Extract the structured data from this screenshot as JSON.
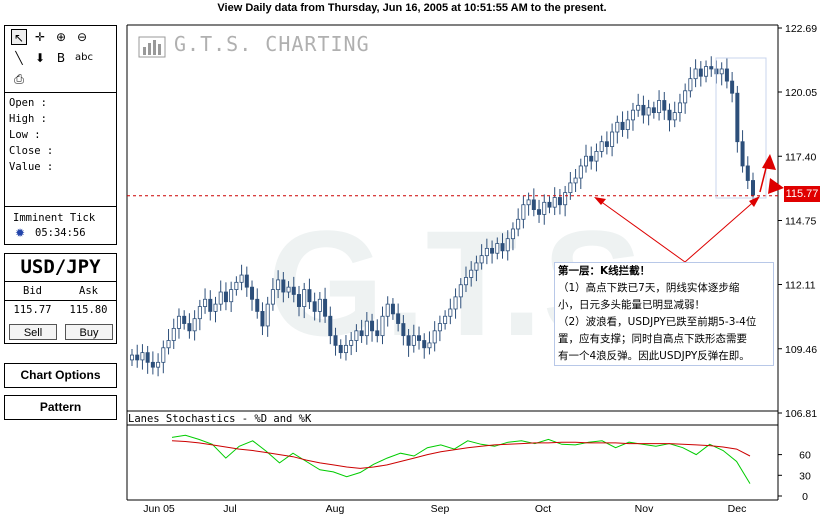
{
  "header": {
    "title": "View Daily  data from Thursday, Jun 16, 2005 at 10:51:55 AM to the present."
  },
  "tools": [
    {
      "name": "pointer-tool",
      "glyph": "↖",
      "active": true
    },
    {
      "name": "crosshair-tool",
      "glyph": "✛",
      "active": false
    },
    {
      "name": "zoom-in-tool",
      "glyph": "⊕",
      "active": false
    },
    {
      "name": "zoom-out-tool",
      "glyph": "⊖",
      "active": false
    },
    {
      "name": "line-tool",
      "glyph": "╲",
      "active": false
    },
    {
      "name": "arrow-down-tool",
      "glyph": "⬇",
      "active": false
    },
    {
      "name": "text-box-tool",
      "glyph": "B",
      "active": false
    },
    {
      "name": "text-tool",
      "glyph": "abc",
      "active": false
    },
    {
      "name": "print-tool",
      "glyph": "⎙",
      "active": false
    }
  ],
  "ohlc_labels": {
    "open": "Open :",
    "high": "High :",
    "low": "Low :",
    "close": "Close :",
    "value": "Value :"
  },
  "tick": {
    "label": "Imminent Tick",
    "time": "05:34:56"
  },
  "quote": {
    "symbol": "USD/JPY",
    "bid_label": "Bid",
    "ask_label": "Ask",
    "bid": "115.77",
    "ask": "115.80",
    "sell": "Sell",
    "buy": "Buy"
  },
  "buttons": {
    "chart_options": "Chart Options",
    "pattern": "Pattern"
  },
  "logo": {
    "text": "G.T.S. CHARTING",
    "watermark": "G.T.S"
  },
  "stochastics": {
    "title": "Lanes Stochastics - %D and %K",
    "y_ticks": [
      60,
      30,
      0
    ]
  },
  "annotation": {
    "lines": [
      "第一层：K线拦截！",
      "（1）高点下跌已7天，阴线实体逐步缩",
      "小，日元多头能量已明显减弱！",
      "（2）波浪看，USDJPY已跌至前期5-3-4位",
      "置，应有支撑；同时自高点下跌形态需要",
      "有一个4浪反弹。因此USDJPY反弹在即。"
    ]
  },
  "current_price": "115.77",
  "colors": {
    "candle": "#2d4f7a",
    "stoch_k": "#00cc00",
    "stoch_d": "#cc0000",
    "ref_line": "#cc0000",
    "arrow": "#dd0000",
    "badge": "#e00000"
  },
  "chart_data": {
    "type": "candlestick",
    "title": "",
    "y_axis_ticks": [
      "122.69",
      "120.05",
      "117.40",
      "114.75",
      "112.11",
      "109.46",
      "106.81"
    ],
    "ylim": [
      106.81,
      122.69
    ],
    "x_labels": [
      "Jun 05",
      "Jul",
      "Aug",
      "Sep",
      "Oct",
      "Nov",
      "Dec"
    ],
    "reference_line": 115.77,
    "close_series": [
      109.2,
      109.0,
      109.3,
      108.9,
      108.7,
      108.9,
      109.5,
      109.8,
      110.3,
      110.8,
      110.5,
      110.2,
      110.7,
      111.2,
      111.5,
      111.0,
      111.3,
      111.8,
      111.4,
      111.9,
      112.2,
      112.5,
      112.0,
      111.5,
      111.0,
      110.4,
      111.3,
      111.9,
      112.3,
      111.8,
      112.0,
      111.7,
      111.2,
      111.9,
      111.4,
      111.0,
      111.5,
      110.8,
      110.0,
      109.6,
      109.3,
      109.6,
      109.8,
      110.2,
      110.0,
      110.6,
      110.2,
      110.0,
      110.8,
      111.3,
      110.9,
      110.5,
      110.0,
      109.6,
      110.0,
      109.8,
      109.5,
      109.7,
      110.2,
      110.5,
      110.8,
      111.1,
      111.6,
      112.1,
      112.4,
      112.7,
      113.0,
      113.3,
      113.6,
      113.4,
      113.8,
      113.5,
      114.0,
      114.4,
      114.8,
      115.4,
      115.6,
      115.2,
      115.0,
      115.5,
      115.3,
      115.7,
      115.4,
      115.9,
      116.3,
      116.5,
      117.0,
      117.4,
      117.2,
      117.6,
      118.0,
      117.8,
      118.4,
      118.8,
      118.5,
      118.9,
      119.3,
      119.5,
      119.1,
      119.4,
      119.2,
      119.7,
      119.3,
      118.9,
      119.2,
      119.6,
      120.1,
      120.6,
      121.0,
      120.7,
      121.1,
      121.0,
      120.8,
      121.0,
      120.5,
      120.0,
      118.0,
      117.0,
      116.4,
      115.8
    ],
    "stoch_d": [
      80,
      79,
      77,
      74,
      71,
      68,
      66,
      63,
      60,
      57,
      52,
      48,
      45,
      42,
      40,
      42,
      45,
      50,
      55,
      60,
      64,
      67,
      70,
      72,
      74,
      75,
      76,
      77,
      77,
      78,
      78,
      77,
      77,
      77,
      76,
      76,
      76,
      76,
      75,
      74,
      73,
      71,
      68,
      58
    ],
    "stoch_k": [
      85,
      88,
      82,
      75,
      55,
      72,
      80,
      65,
      48,
      62,
      50,
      38,
      35,
      28,
      34,
      46,
      55,
      62,
      58,
      70,
      74,
      68,
      80,
      75,
      72,
      78,
      80,
      76,
      82,
      75,
      74,
      78,
      80,
      70,
      78,
      75,
      72,
      76,
      70,
      60,
      75,
      66,
      50,
      18
    ]
  }
}
